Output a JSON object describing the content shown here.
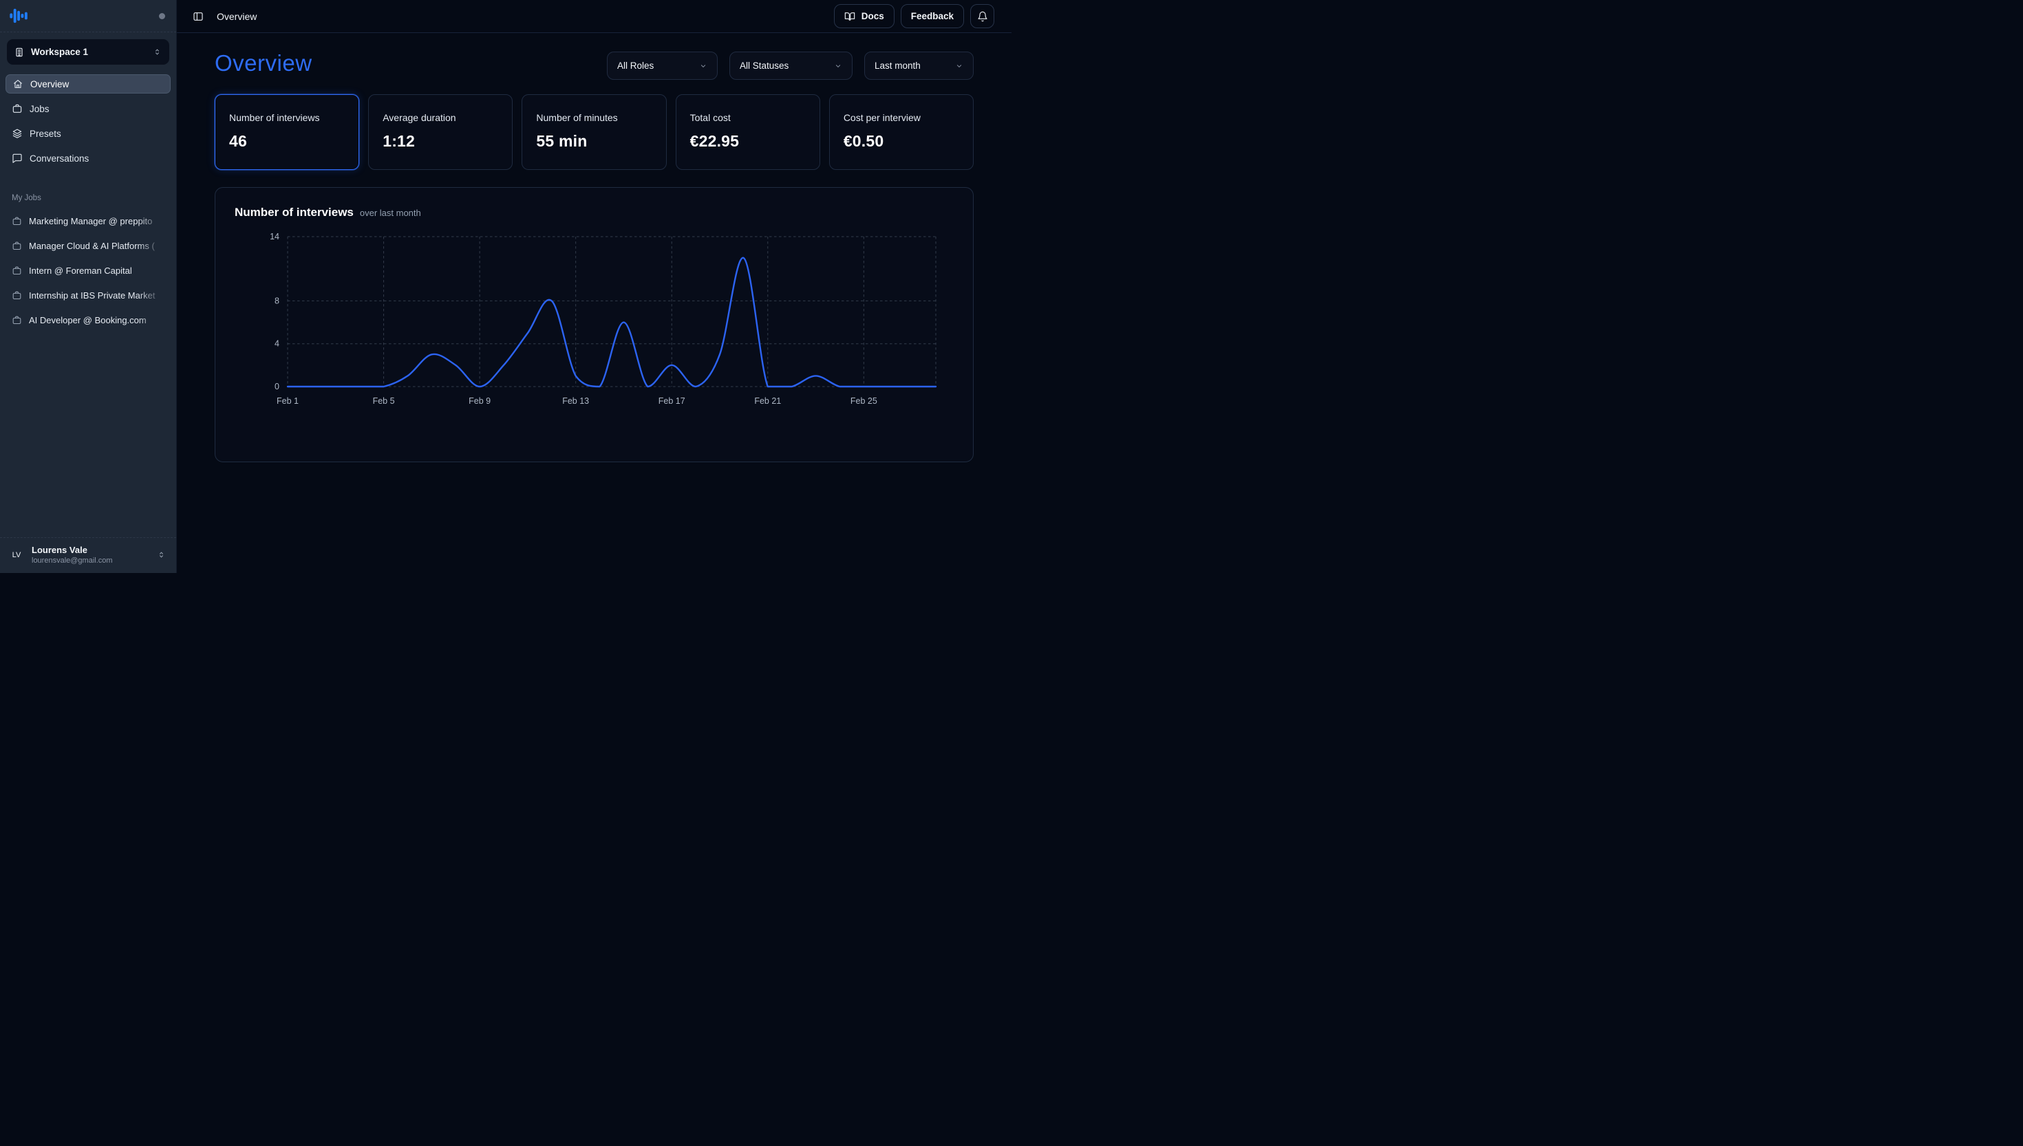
{
  "topbar": {
    "title": "Overview",
    "docs": "Docs",
    "feedback": "Feedback"
  },
  "sidebar": {
    "workspace": "Workspace 1",
    "nav": [
      {
        "label": "Overview",
        "active": true
      },
      {
        "label": "Jobs",
        "active": false
      },
      {
        "label": "Presets",
        "active": false
      },
      {
        "label": "Conversations",
        "active": false
      }
    ],
    "my_jobs_heading": "My Jobs",
    "jobs": [
      {
        "label": "Marketing Manager @ preppito"
      },
      {
        "label": "Manager Cloud & AI Platforms ("
      },
      {
        "label": "Intern @ Foreman Capital"
      },
      {
        "label": "Internship at IBS Private Market"
      },
      {
        "label": "AI Developer @ Booking.com"
      }
    ],
    "user": {
      "initials": "LV",
      "name": "Lourens Vale",
      "email": "lourensvale@gmail.com"
    }
  },
  "page_heading": "Overview",
  "filters": [
    {
      "label": "All Roles"
    },
    {
      "label": "All Statuses"
    },
    {
      "label": "Last month"
    }
  ],
  "stats": [
    {
      "label": "Number of interviews",
      "value": "46",
      "selected": true
    },
    {
      "label": "Average duration",
      "value": "1:12",
      "selected": false
    },
    {
      "label": "Number of minutes",
      "value": "55 min",
      "selected": false
    },
    {
      "label": "Total cost",
      "value": "€22.95",
      "selected": false
    },
    {
      "label": "Cost per interview",
      "value": "€0.50",
      "selected": false
    }
  ],
  "chart_data": {
    "type": "line",
    "title": "Number of interviews",
    "subtitle": "over last month",
    "x": [
      "Feb 1",
      "Feb 2",
      "Feb 3",
      "Feb 4",
      "Feb 5",
      "Feb 6",
      "Feb 7",
      "Feb 8",
      "Feb 9",
      "Feb 10",
      "Feb 11",
      "Feb 12",
      "Feb 13",
      "Feb 14",
      "Feb 15",
      "Feb 16",
      "Feb 17",
      "Feb 18",
      "Feb 19",
      "Feb 20",
      "Feb 21",
      "Feb 22",
      "Feb 23",
      "Feb 24",
      "Feb 25",
      "Feb 26",
      "Feb 27",
      "Feb 28"
    ],
    "values": [
      0,
      0,
      0,
      0,
      0,
      1,
      3,
      2,
      0,
      2,
      5,
      8,
      1,
      0,
      6,
      0,
      2,
      0,
      3,
      12,
      0,
      0,
      1,
      0,
      0,
      0,
      0,
      0
    ],
    "total": 46,
    "ylim": [
      0,
      14
    ],
    "y_ticks": [
      0,
      4,
      8,
      14
    ],
    "x_tick_positions": [
      0,
      4,
      8,
      12,
      16,
      20,
      24
    ],
    "x_tick_labels": [
      "Feb 1",
      "Feb 5",
      "Feb 9",
      "Feb 13",
      "Feb 17",
      "Feb 21",
      "Feb 25"
    ],
    "right_edge_gridline_day": 27,
    "grid": "dashed",
    "legend": "none",
    "line_color": "#2c63f2"
  },
  "colors": {
    "accent_blue": "#2e6cf3",
    "chart_line": "#2c63f2",
    "active_card_border": "#2f6af5",
    "sidebar_bg": "#1e2836",
    "main_bg": "#050a15",
    "card_bg": "#070c19",
    "card_border": "#1f2b40",
    "logo_blue": "#1f7cf9"
  }
}
